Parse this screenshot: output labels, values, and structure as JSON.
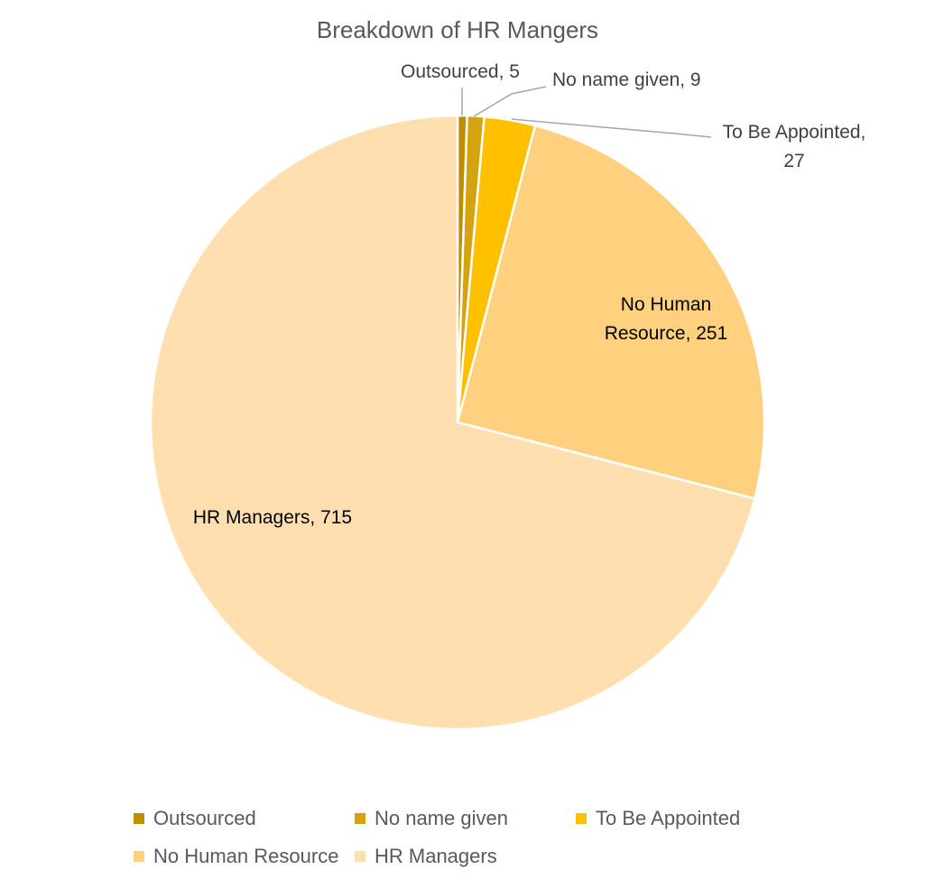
{
  "chart_data": {
    "type": "pie",
    "title": "Breakdown of HR Mangers",
    "slices": [
      {
        "name": "Outsourced",
        "value": 5,
        "color": "#BF8F00",
        "label_lines": [
          "Outsourced, 5"
        ]
      },
      {
        "name": "No name given",
        "value": 9,
        "color": "#D6A310",
        "label_lines": [
          "No name given, 9"
        ]
      },
      {
        "name": "To Be Appointed",
        "value": 27,
        "color": "#FFC000",
        "label_lines": [
          "To Be Appointed,",
          "27"
        ]
      },
      {
        "name": "No Human Resource",
        "value": 251,
        "color": "#FFD17F",
        "label_lines": [
          "No Human",
          "Resource, 251"
        ]
      },
      {
        "name": "HR Managers",
        "value": 715,
        "color": "#FFDFAF",
        "label_lines": [
          "HR Managers, 715"
        ]
      }
    ],
    "legend_position": "bottom",
    "start_angle_deg": 0,
    "direction": "clockwise"
  }
}
